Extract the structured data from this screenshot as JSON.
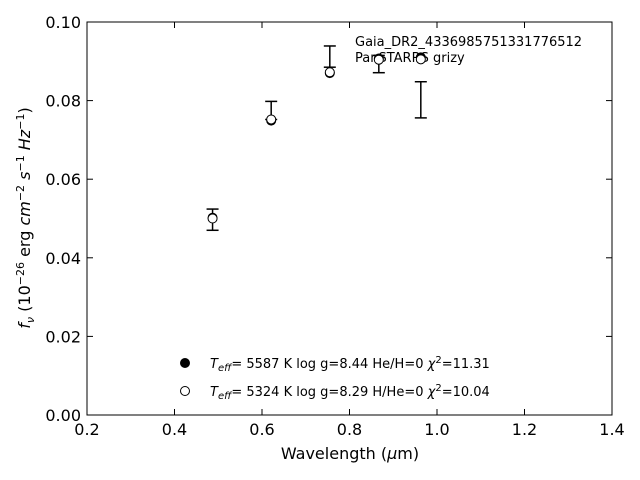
{
  "chart_data": {
    "type": "scatter",
    "xlabel": "Wavelength (μm)",
    "ylabel": "f_ν (10^−26 erg cm^−2 s^−1 Hz^−1)",
    "xlim": [
      0.2,
      1.4
    ],
    "ylim": [
      0.0,
      0.1
    ],
    "xticks": [
      "0.2",
      "0.4",
      "0.6",
      "0.8",
      "1.0",
      "1.2",
      "1.4"
    ],
    "yticks": [
      "0.00",
      "0.02",
      "0.04",
      "0.06",
      "0.08",
      "0.10"
    ],
    "grid": false,
    "annotations": [
      "Gaia_DR2_4336985751331776512",
      "PanSTARRS grizy"
    ],
    "observed": {
      "x": [
        0.487,
        0.621,
        0.755,
        0.867,
        0.963
      ],
      "y": [
        0.0497,
        0.0775,
        0.0912,
        0.0893,
        0.0802
      ],
      "yerr": [
        0.0027,
        0.0023,
        0.0027,
        0.0022,
        0.0046
      ]
    },
    "series": [
      {
        "marker": "filled-circle",
        "legend": "T_eff= 5587 K log g=8.44 He/H=0 χ²=11.31",
        "x": [
          0.487,
          0.621,
          0.755,
          0.867,
          0.963
        ],
        "y": [
          0.0502,
          0.0749,
          0.087,
          0.0907,
          0.091
        ]
      },
      {
        "marker": "open-circle",
        "legend": "T_eff= 5324 K log g=8.29 H/He=0 χ²=10.04",
        "x": [
          0.487,
          0.621,
          0.755,
          0.867,
          0.963
        ],
        "y": [
          0.05,
          0.0752,
          0.0872,
          0.0904,
          0.0905
        ]
      }
    ],
    "legend_placement": "bottom-center"
  }
}
